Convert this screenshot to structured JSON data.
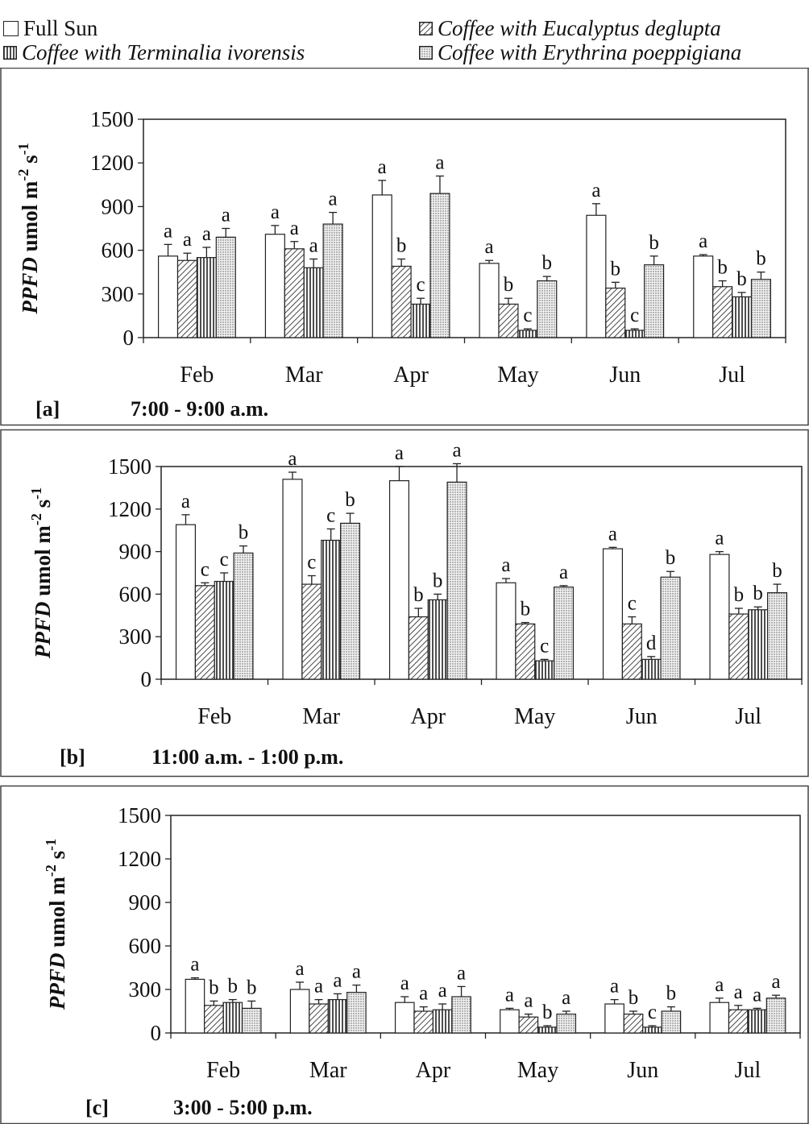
{
  "legend": [
    {
      "key": "sun",
      "label": "Full Sun",
      "italic": false
    },
    {
      "key": "euc",
      "label": "Coffee with Eucalyptus deglupta",
      "italic": true
    },
    {
      "key": "ter",
      "label": "Coffee with Terminalia ivorensis",
      "italic": true
    },
    {
      "key": "ery",
      "label": "Coffee with Erythrina poeppigiana",
      "italic": true
    }
  ],
  "chart_data": [
    {
      "type": "bar",
      "panel_label": "[a]",
      "time_label": "7:00 - 9:00 a.m.",
      "ylabel": "PPFD umol m",
      "ylabel_sup1": "-2",
      "ylabel_mid": " s",
      "ylabel_sup2": "-1",
      "ylim": [
        0,
        1500
      ],
      "yticks": [
        0,
        300,
        600,
        900,
        1200,
        1500
      ],
      "categories": [
        "Feb",
        "Mar",
        "Apr",
        "May",
        "Jun",
        "Jul"
      ],
      "series": [
        {
          "key": "sun",
          "values": [
            560,
            710,
            980,
            510,
            840,
            560
          ],
          "errors": [
            80,
            60,
            100,
            20,
            80,
            10
          ],
          "letters": [
            "a",
            "a",
            "a",
            "a",
            "a",
            "a"
          ]
        },
        {
          "key": "euc",
          "values": [
            530,
            610,
            490,
            230,
            340,
            350
          ],
          "errors": [
            50,
            50,
            50,
            40,
            40,
            40
          ],
          "letters": [
            "a",
            "a",
            "b",
            "b",
            "b",
            "b"
          ]
        },
        {
          "key": "ter",
          "values": [
            550,
            480,
            230,
            50,
            50,
            280
          ],
          "errors": [
            70,
            60,
            40,
            10,
            10,
            30
          ],
          "letters": [
            "a",
            "a",
            "c",
            "c",
            "c",
            "b"
          ]
        },
        {
          "key": "ery",
          "values": [
            690,
            780,
            990,
            390,
            500,
            400
          ],
          "errors": [
            60,
            80,
            120,
            30,
            60,
            50
          ],
          "letters": [
            "a",
            "a",
            "a",
            "b",
            "b",
            "b"
          ]
        }
      ]
    },
    {
      "type": "bar",
      "panel_label": "[b]",
      "time_label": "11:00 a.m. - 1:00 p.m.",
      "ylabel": "PPFD umol m",
      "ylabel_sup1": "-2",
      "ylabel_mid": " s",
      "ylabel_sup2": "-1",
      "ylim": [
        0,
        1500
      ],
      "yticks": [
        0,
        300,
        600,
        900,
        1200,
        1500
      ],
      "categories": [
        "Feb",
        "Mar",
        "Apr",
        "May",
        "Jun",
        "Jul"
      ],
      "series": [
        {
          "key": "sun",
          "values": [
            1090,
            1410,
            1400,
            680,
            920,
            880
          ],
          "errors": [
            70,
            50,
            100,
            30,
            10,
            20
          ],
          "letters": [
            "a",
            "a",
            "a",
            "a",
            "a",
            "a"
          ]
        },
        {
          "key": "euc",
          "values": [
            660,
            670,
            440,
            390,
            390,
            460
          ],
          "errors": [
            20,
            60,
            60,
            10,
            50,
            40
          ],
          "letters": [
            "c",
            "c",
            "b",
            "b",
            "c",
            "b"
          ]
        },
        {
          "key": "ter",
          "values": [
            690,
            980,
            560,
            130,
            140,
            490
          ],
          "errors": [
            60,
            80,
            40,
            10,
            20,
            20
          ],
          "letters": [
            "c",
            "c",
            "b",
            "c",
            "d",
            "b"
          ]
        },
        {
          "key": "ery",
          "values": [
            890,
            1100,
            1390,
            650,
            720,
            610
          ],
          "errors": [
            50,
            70,
            130,
            10,
            40,
            60
          ],
          "letters": [
            "b",
            "b",
            "a",
            "a",
            "b",
            "b"
          ]
        }
      ]
    },
    {
      "type": "bar",
      "panel_label": "[c]",
      "time_label": "3:00 - 5:00 p.m.",
      "ylabel": "PPFD umol m",
      "ylabel_sup1": "-2",
      "ylabel_mid": " s",
      "ylabel_sup2": "-1",
      "ylim": [
        0,
        1500
      ],
      "yticks": [
        0,
        300,
        600,
        900,
        1200,
        1500
      ],
      "categories": [
        "Feb",
        "Mar",
        "Apr",
        "May",
        "Jun",
        "Jul"
      ],
      "series": [
        {
          "key": "sun",
          "values": [
            370,
            300,
            210,
            160,
            200,
            210
          ],
          "errors": [
            10,
            50,
            40,
            10,
            30,
            30
          ],
          "letters": [
            "a",
            "a",
            "a",
            "a",
            "a",
            "a"
          ]
        },
        {
          "key": "euc",
          "values": [
            190,
            200,
            150,
            110,
            130,
            160
          ],
          "errors": [
            30,
            30,
            30,
            20,
            20,
            30
          ],
          "letters": [
            "b",
            "a",
            "a",
            "a",
            "b",
            "a"
          ]
        },
        {
          "key": "ter",
          "values": [
            210,
            230,
            160,
            40,
            40,
            160
          ],
          "errors": [
            20,
            40,
            40,
            10,
            10,
            10
          ],
          "letters": [
            "b",
            "a",
            "a",
            "b",
            "c",
            "a"
          ]
        },
        {
          "key": "ery",
          "values": [
            170,
            280,
            250,
            130,
            150,
            240
          ],
          "errors": [
            50,
            50,
            70,
            20,
            30,
            20
          ],
          "letters": [
            "b",
            "a",
            "a",
            "a",
            "b",
            "a"
          ]
        }
      ]
    }
  ]
}
